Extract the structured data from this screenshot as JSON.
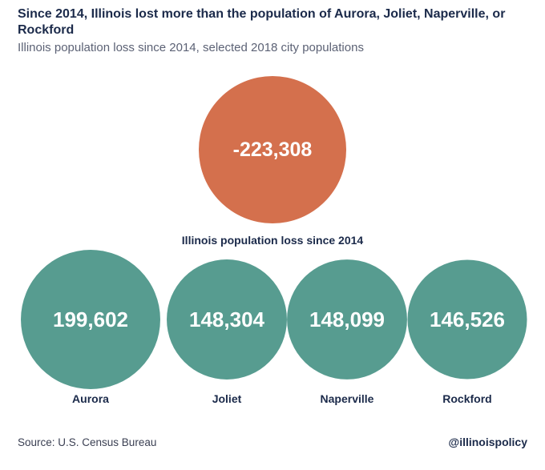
{
  "header": {
    "title": "Since 2014, Illinois lost more than the population of Aurora, Joliet, Naperville, or Rockford",
    "subtitle": "Illinois population loss since 2014, selected 2018 city populations"
  },
  "footer": {
    "source": "Source: U.S. Census Bureau",
    "handle": "@illinoispolicy"
  },
  "colors": {
    "loss": "#d4704d",
    "city": "#579c90",
    "text_dark": "#1b2a4a"
  },
  "chart_data": {
    "type": "bubble",
    "title": "Since 2014, Illinois lost more than the population of Aurora, Joliet, Naperville, or Rockford",
    "subtitle": "Illinois population loss since 2014, selected 2018 city populations",
    "series": [
      {
        "label": "Illinois population loss since 2014",
        "value": -223308,
        "display": "-223,308",
        "color": "#d4704d"
      },
      {
        "label": "Aurora",
        "value": 199602,
        "display": "199,602",
        "color": "#579c90"
      },
      {
        "label": "Joliet",
        "value": 148304,
        "display": "148,304",
        "color": "#579c90"
      },
      {
        "label": "Naperville",
        "value": 148099,
        "display": "148,099",
        "color": "#579c90"
      },
      {
        "label": "Rockford",
        "value": 146526,
        "display": "146,526",
        "color": "#579c90"
      }
    ]
  }
}
